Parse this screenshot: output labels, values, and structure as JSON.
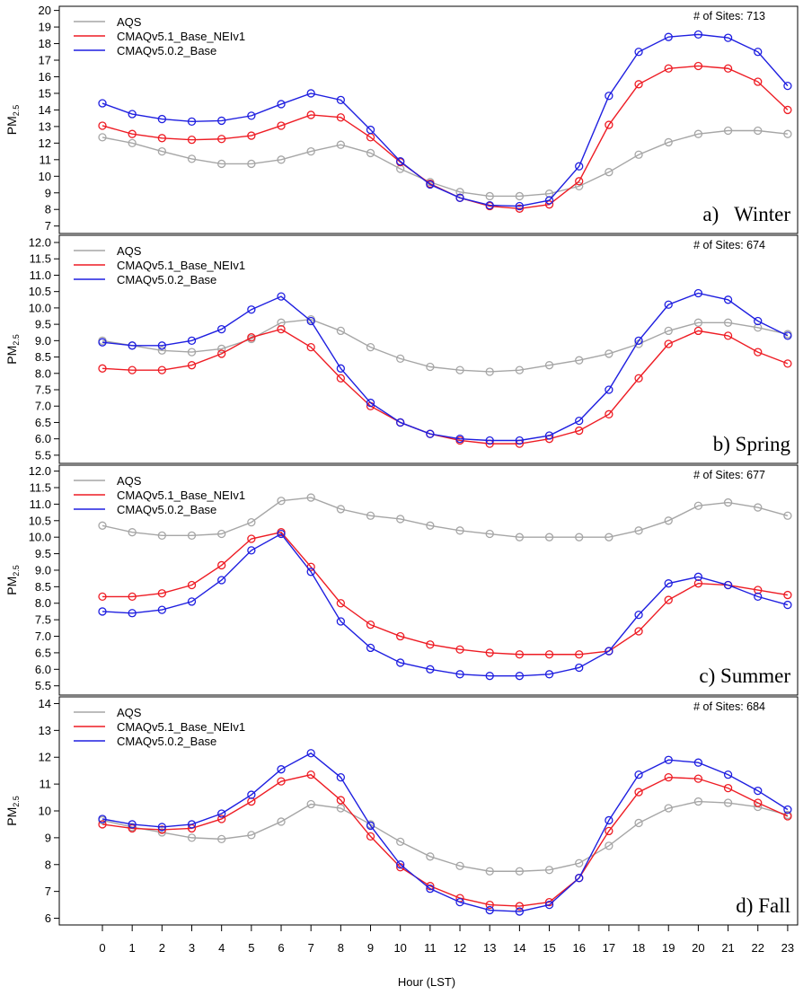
{
  "chart_data": [
    {
      "type": "line",
      "panel_label": "a)",
      "season": "Winter",
      "sites_text": "# of Sites: 713",
      "ylabel": "PM",
      "ylabel_sub": "2.5",
      "x": [
        0,
        1,
        2,
        3,
        4,
        5,
        6,
        7,
        8,
        9,
        10,
        11,
        12,
        13,
        14,
        15,
        16,
        17,
        18,
        19,
        20,
        21,
        22,
        23
      ],
      "ylim": [
        6.55,
        20.25
      ],
      "yticks": [
        7,
        8,
        9,
        10,
        11,
        12,
        13,
        14,
        15,
        16,
        17,
        18,
        19,
        20
      ],
      "ytick_decimals": 0,
      "legend_position": "top-left",
      "series": [
        {
          "name": "AQS",
          "color": "#a6a6a6",
          "values": [
            12.35,
            12.0,
            11.5,
            11.05,
            10.75,
            10.75,
            11.0,
            11.5,
            11.9,
            11.4,
            10.45,
            9.65,
            9.05,
            8.8,
            8.8,
            8.95,
            9.4,
            10.25,
            11.3,
            12.05,
            12.55,
            12.75,
            12.75,
            12.55
          ]
        },
        {
          "name": "CMAQv5.1_Base_NEIv1",
          "color": "#ee1c24",
          "values": [
            13.05,
            12.55,
            12.3,
            12.2,
            12.25,
            12.45,
            13.05,
            13.7,
            13.55,
            12.35,
            10.85,
            9.55,
            8.7,
            8.2,
            8.05,
            8.3,
            9.7,
            13.1,
            15.55,
            16.5,
            16.65,
            16.5,
            15.7,
            14.0
          ]
        },
        {
          "name": "CMAQv5.0.2_Base",
          "color": "#1f1fe0",
          "values": [
            14.4,
            13.75,
            13.45,
            13.3,
            13.35,
            13.65,
            14.35,
            15.0,
            14.6,
            12.8,
            10.9,
            9.5,
            8.7,
            8.25,
            8.2,
            8.55,
            10.6,
            14.85,
            17.5,
            18.4,
            18.55,
            18.35,
            17.5,
            15.45
          ]
        }
      ]
    },
    {
      "type": "line",
      "panel_label": "b)",
      "season": "Spring",
      "sites_text": "# of Sites: 674",
      "ylabel": "PM",
      "ylabel_sub": "2.5",
      "x": [
        0,
        1,
        2,
        3,
        4,
        5,
        6,
        7,
        8,
        9,
        10,
        11,
        12,
        13,
        14,
        15,
        16,
        17,
        18,
        19,
        20,
        21,
        22,
        23
      ],
      "ylim": [
        5.25,
        12.22
      ],
      "yticks": [
        5.5,
        6.0,
        6.5,
        7.0,
        7.5,
        8.0,
        8.5,
        9.0,
        9.5,
        10.0,
        10.5,
        11.0,
        11.5,
        12.0
      ],
      "ytick_decimals": 1,
      "legend_position": "top-left",
      "series": [
        {
          "name": "AQS",
          "color": "#a6a6a6",
          "values": [
            9.0,
            8.85,
            8.7,
            8.65,
            8.75,
            9.05,
            9.55,
            9.65,
            9.3,
            8.8,
            8.45,
            8.2,
            8.1,
            8.05,
            8.1,
            8.25,
            8.4,
            8.6,
            8.9,
            9.3,
            9.55,
            9.55,
            9.4,
            9.2
          ]
        },
        {
          "name": "CMAQv5.1_Base_NEIv1",
          "color": "#ee1c24",
          "values": [
            8.15,
            8.1,
            8.1,
            8.25,
            8.6,
            9.1,
            9.35,
            8.8,
            7.85,
            7.0,
            6.5,
            6.15,
            5.95,
            5.85,
            5.85,
            6.0,
            6.25,
            6.75,
            7.85,
            8.9,
            9.3,
            9.15,
            8.65,
            8.3
          ]
        },
        {
          "name": "CMAQv5.0.2_Base",
          "color": "#1f1fe0",
          "values": [
            8.95,
            8.85,
            8.85,
            9.0,
            9.35,
            9.95,
            10.35,
            9.6,
            8.15,
            7.1,
            6.5,
            6.15,
            6.0,
            5.95,
            5.95,
            6.1,
            6.55,
            7.5,
            9.0,
            10.1,
            10.45,
            10.25,
            9.6,
            9.15
          ]
        }
      ]
    },
    {
      "type": "line",
      "panel_label": "c)",
      "season": "Summer",
      "sites_text": "# of Sites: 677",
      "ylabel": "PM",
      "ylabel_sub": "2.5",
      "x": [
        0,
        1,
        2,
        3,
        4,
        5,
        6,
        7,
        8,
        9,
        10,
        11,
        12,
        13,
        14,
        15,
        16,
        17,
        18,
        19,
        20,
        21,
        22,
        23
      ],
      "ylim": [
        5.22,
        12.18
      ],
      "yticks": [
        5.5,
        6.0,
        6.5,
        7.0,
        7.5,
        8.0,
        8.5,
        9.0,
        9.5,
        10.0,
        10.5,
        11.0,
        11.5,
        12.0
      ],
      "ytick_decimals": 1,
      "legend_position": "top-left",
      "series": [
        {
          "name": "AQS",
          "color": "#a6a6a6",
          "values": [
            10.35,
            10.15,
            10.05,
            10.05,
            10.1,
            10.45,
            11.1,
            11.2,
            10.85,
            10.65,
            10.55,
            10.35,
            10.2,
            10.1,
            10.0,
            10.0,
            10.0,
            10.0,
            10.2,
            10.5,
            10.95,
            11.05,
            10.9,
            10.65
          ]
        },
        {
          "name": "CMAQv5.1_Base_NEIv1",
          "color": "#ee1c24",
          "values": [
            8.2,
            8.2,
            8.3,
            8.55,
            9.15,
            9.95,
            10.15,
            9.1,
            8.0,
            7.35,
            7.0,
            6.75,
            6.6,
            6.5,
            6.45,
            6.45,
            6.45,
            6.55,
            7.15,
            8.1,
            8.6,
            8.55,
            8.4,
            8.25
          ]
        },
        {
          "name": "CMAQv5.0.2_Base",
          "color": "#1f1fe0",
          "values": [
            7.75,
            7.7,
            7.8,
            8.05,
            8.7,
            9.6,
            10.1,
            8.95,
            7.45,
            6.65,
            6.2,
            6.0,
            5.85,
            5.8,
            5.8,
            5.85,
            6.05,
            6.55,
            7.65,
            8.6,
            8.8,
            8.55,
            8.2,
            7.95
          ]
        }
      ]
    },
    {
      "type": "line",
      "panel_label": "d)",
      "season": "Fall",
      "sites_text": "# of Sites: 684",
      "ylabel": "PM",
      "ylabel_sub": "2.5",
      "xlabel": "Hour (LST)",
      "x": [
        0,
        1,
        2,
        3,
        4,
        5,
        6,
        7,
        8,
        9,
        10,
        11,
        12,
        13,
        14,
        15,
        16,
        17,
        18,
        19,
        20,
        21,
        22,
        23
      ],
      "ylim": [
        5.75,
        14.25
      ],
      "yticks": [
        6,
        7,
        8,
        9,
        10,
        11,
        12,
        13,
        14
      ],
      "ytick_decimals": 0,
      "legend_position": "top-left",
      "series": [
        {
          "name": "AQS",
          "color": "#a6a6a6",
          "values": [
            9.65,
            9.4,
            9.2,
            9.0,
            8.95,
            9.1,
            9.6,
            10.25,
            10.1,
            9.5,
            8.85,
            8.3,
            7.95,
            7.75,
            7.75,
            7.8,
            8.05,
            8.7,
            9.55,
            10.1,
            10.35,
            10.3,
            10.15,
            9.85
          ]
        },
        {
          "name": "CMAQv5.1_Base_NEIv1",
          "color": "#ee1c24",
          "values": [
            9.5,
            9.35,
            9.3,
            9.35,
            9.7,
            10.35,
            11.1,
            11.35,
            10.4,
            9.05,
            7.9,
            7.2,
            6.75,
            6.5,
            6.45,
            6.6,
            7.5,
            9.25,
            10.7,
            11.25,
            11.2,
            10.85,
            10.3,
            9.8
          ]
        },
        {
          "name": "CMAQv5.0.2_Base",
          "color": "#1f1fe0",
          "values": [
            9.7,
            9.5,
            9.4,
            9.5,
            9.9,
            10.6,
            11.55,
            12.15,
            11.25,
            9.45,
            8.0,
            7.1,
            6.6,
            6.3,
            6.25,
            6.5,
            7.5,
            9.65,
            11.35,
            11.9,
            11.8,
            11.35,
            10.75,
            10.05
          ]
        }
      ]
    }
  ]
}
